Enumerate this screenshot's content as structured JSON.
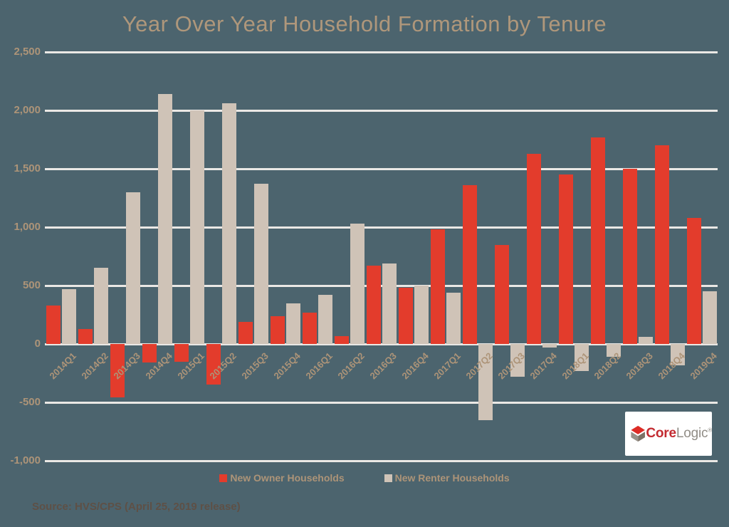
{
  "colors": {
    "background": "#4C646E",
    "gridline": "#EAE8E5",
    "axis_text": "#AD9478",
    "title_text": "#AF977B",
    "source_text": "#5E5046",
    "owner_red": "#E33C2C",
    "renter_tan": "#CFC3B7",
    "logo_core_red": "#C32B31",
    "logo_logic_gray": "#918D86"
  },
  "chart_data": {
    "type": "bar",
    "title": "Year Over Year Household Formation by Tenure",
    "xlabel": "",
    "ylabel": "",
    "ylim": [
      -1000,
      2500
    ],
    "grid": true,
    "legend_position": "bottom-center",
    "categories": [
      "2014Q1",
      "2014Q2",
      "2014Q3",
      "2014Q4",
      "2015Q1",
      "2015Q2",
      "2015Q3",
      "2015Q4",
      "2016Q1",
      "2016Q2",
      "2016Q3",
      "2016Q4",
      "2017Q1",
      "2017Q2",
      "2017Q3",
      "2017Q4",
      "2018Q1",
      "2018Q2",
      "2018Q3",
      "2018Q4",
      "2019Q4"
    ],
    "series": [
      {
        "name": "New Owner Households",
        "color": "#E33C2C",
        "values": [
          330,
          130,
          -460,
          -160,
          -150,
          -350,
          190,
          240,
          270,
          70,
          670,
          480,
          980,
          1360,
          850,
          1630,
          1450,
          1770,
          1500,
          1700,
          1080
        ]
      },
      {
        "name": "New Renter Households",
        "color": "#CFC3B7",
        "values": [
          470,
          650,
          1300,
          2140,
          2000,
          2060,
          1370,
          350,
          420,
          1030,
          690,
          500,
          440,
          -650,
          -280,
          -30,
          -230,
          -110,
          60,
          -180,
          450
        ]
      }
    ],
    "yticks": [
      {
        "value": 2500,
        "label": "2,500"
      },
      {
        "value": 2000,
        "label": "2,000"
      },
      {
        "value": 1500,
        "label": "1,500"
      },
      {
        "value": 1000,
        "label": "1,000"
      },
      {
        "value": 500,
        "label": "500"
      },
      {
        "value": 0,
        "label": "0"
      },
      {
        "value": -500,
        "label": "-500"
      },
      {
        "value": -1000,
        "label": "-1,000"
      }
    ]
  },
  "footer": {
    "source_note": "Source:  HVS/CPS (April 25, 2019 release)"
  },
  "logo": {
    "core": "Core",
    "logic": "Logic",
    "registered": "®"
  }
}
